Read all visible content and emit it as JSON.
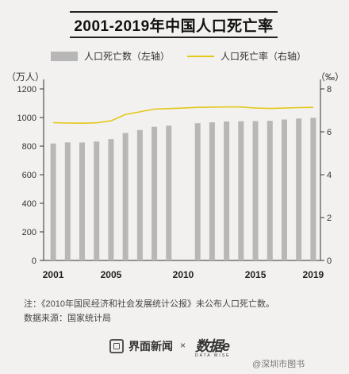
{
  "title": "2001-2019年中国人口死亡率",
  "legend": {
    "bar_label": "人口死亡数（左轴）",
    "line_label": "人口死亡率（右轴）"
  },
  "units": {
    "left": "（万人）",
    "right": "（‰）"
  },
  "note": "注：《2010年国民经济和社会发展统计公报》未公布人口死亡数。",
  "source": "数据来源：国家统计局",
  "footer": {
    "brand_name": "界面新闻",
    "times": "×",
    "partner_logo": "数据e",
    "partner_sub": "DATA WISE"
  },
  "watermark": "@深圳市图书",
  "colors": {
    "bar": "#b7b7b7",
    "line": "#e3c81a",
    "axis": "#333333"
  },
  "chart_data": {
    "type": "bar",
    "x": [
      2001,
      2002,
      2003,
      2004,
      2005,
      2006,
      2007,
      2008,
      2009,
      2010,
      2011,
      2012,
      2013,
      2014,
      2015,
      2016,
      2017,
      2018,
      2019
    ],
    "x_tick_labels": [
      "2001",
      "2005",
      "2010",
      "2015",
      "2019"
    ],
    "left_axis": {
      "ylim": [
        0,
        1200
      ],
      "ticks": [
        0,
        200,
        400,
        600,
        800,
        1000,
        1200
      ]
    },
    "right_axis": {
      "ylim": [
        0,
        8
      ],
      "ticks": [
        0,
        2,
        4,
        6,
        8
      ]
    },
    "series": [
      {
        "name": "人口死亡数（左轴）",
        "type": "bar",
        "axis": "left",
        "values": [
          818,
          826,
          825,
          832,
          849,
          892,
          913,
          935,
          943,
          null,
          960,
          966,
          972,
          974,
          975,
          977,
          986,
          993,
          998
        ]
      },
      {
        "name": "人口死亡率（右轴）",
        "type": "line",
        "axis": "right",
        "values": [
          6.43,
          6.41,
          6.4,
          6.42,
          6.51,
          6.81,
          6.93,
          7.06,
          7.08,
          7.11,
          7.14,
          7.15,
          7.16,
          7.16,
          7.11,
          7.09,
          7.11,
          7.13,
          7.14
        ]
      }
    ]
  }
}
